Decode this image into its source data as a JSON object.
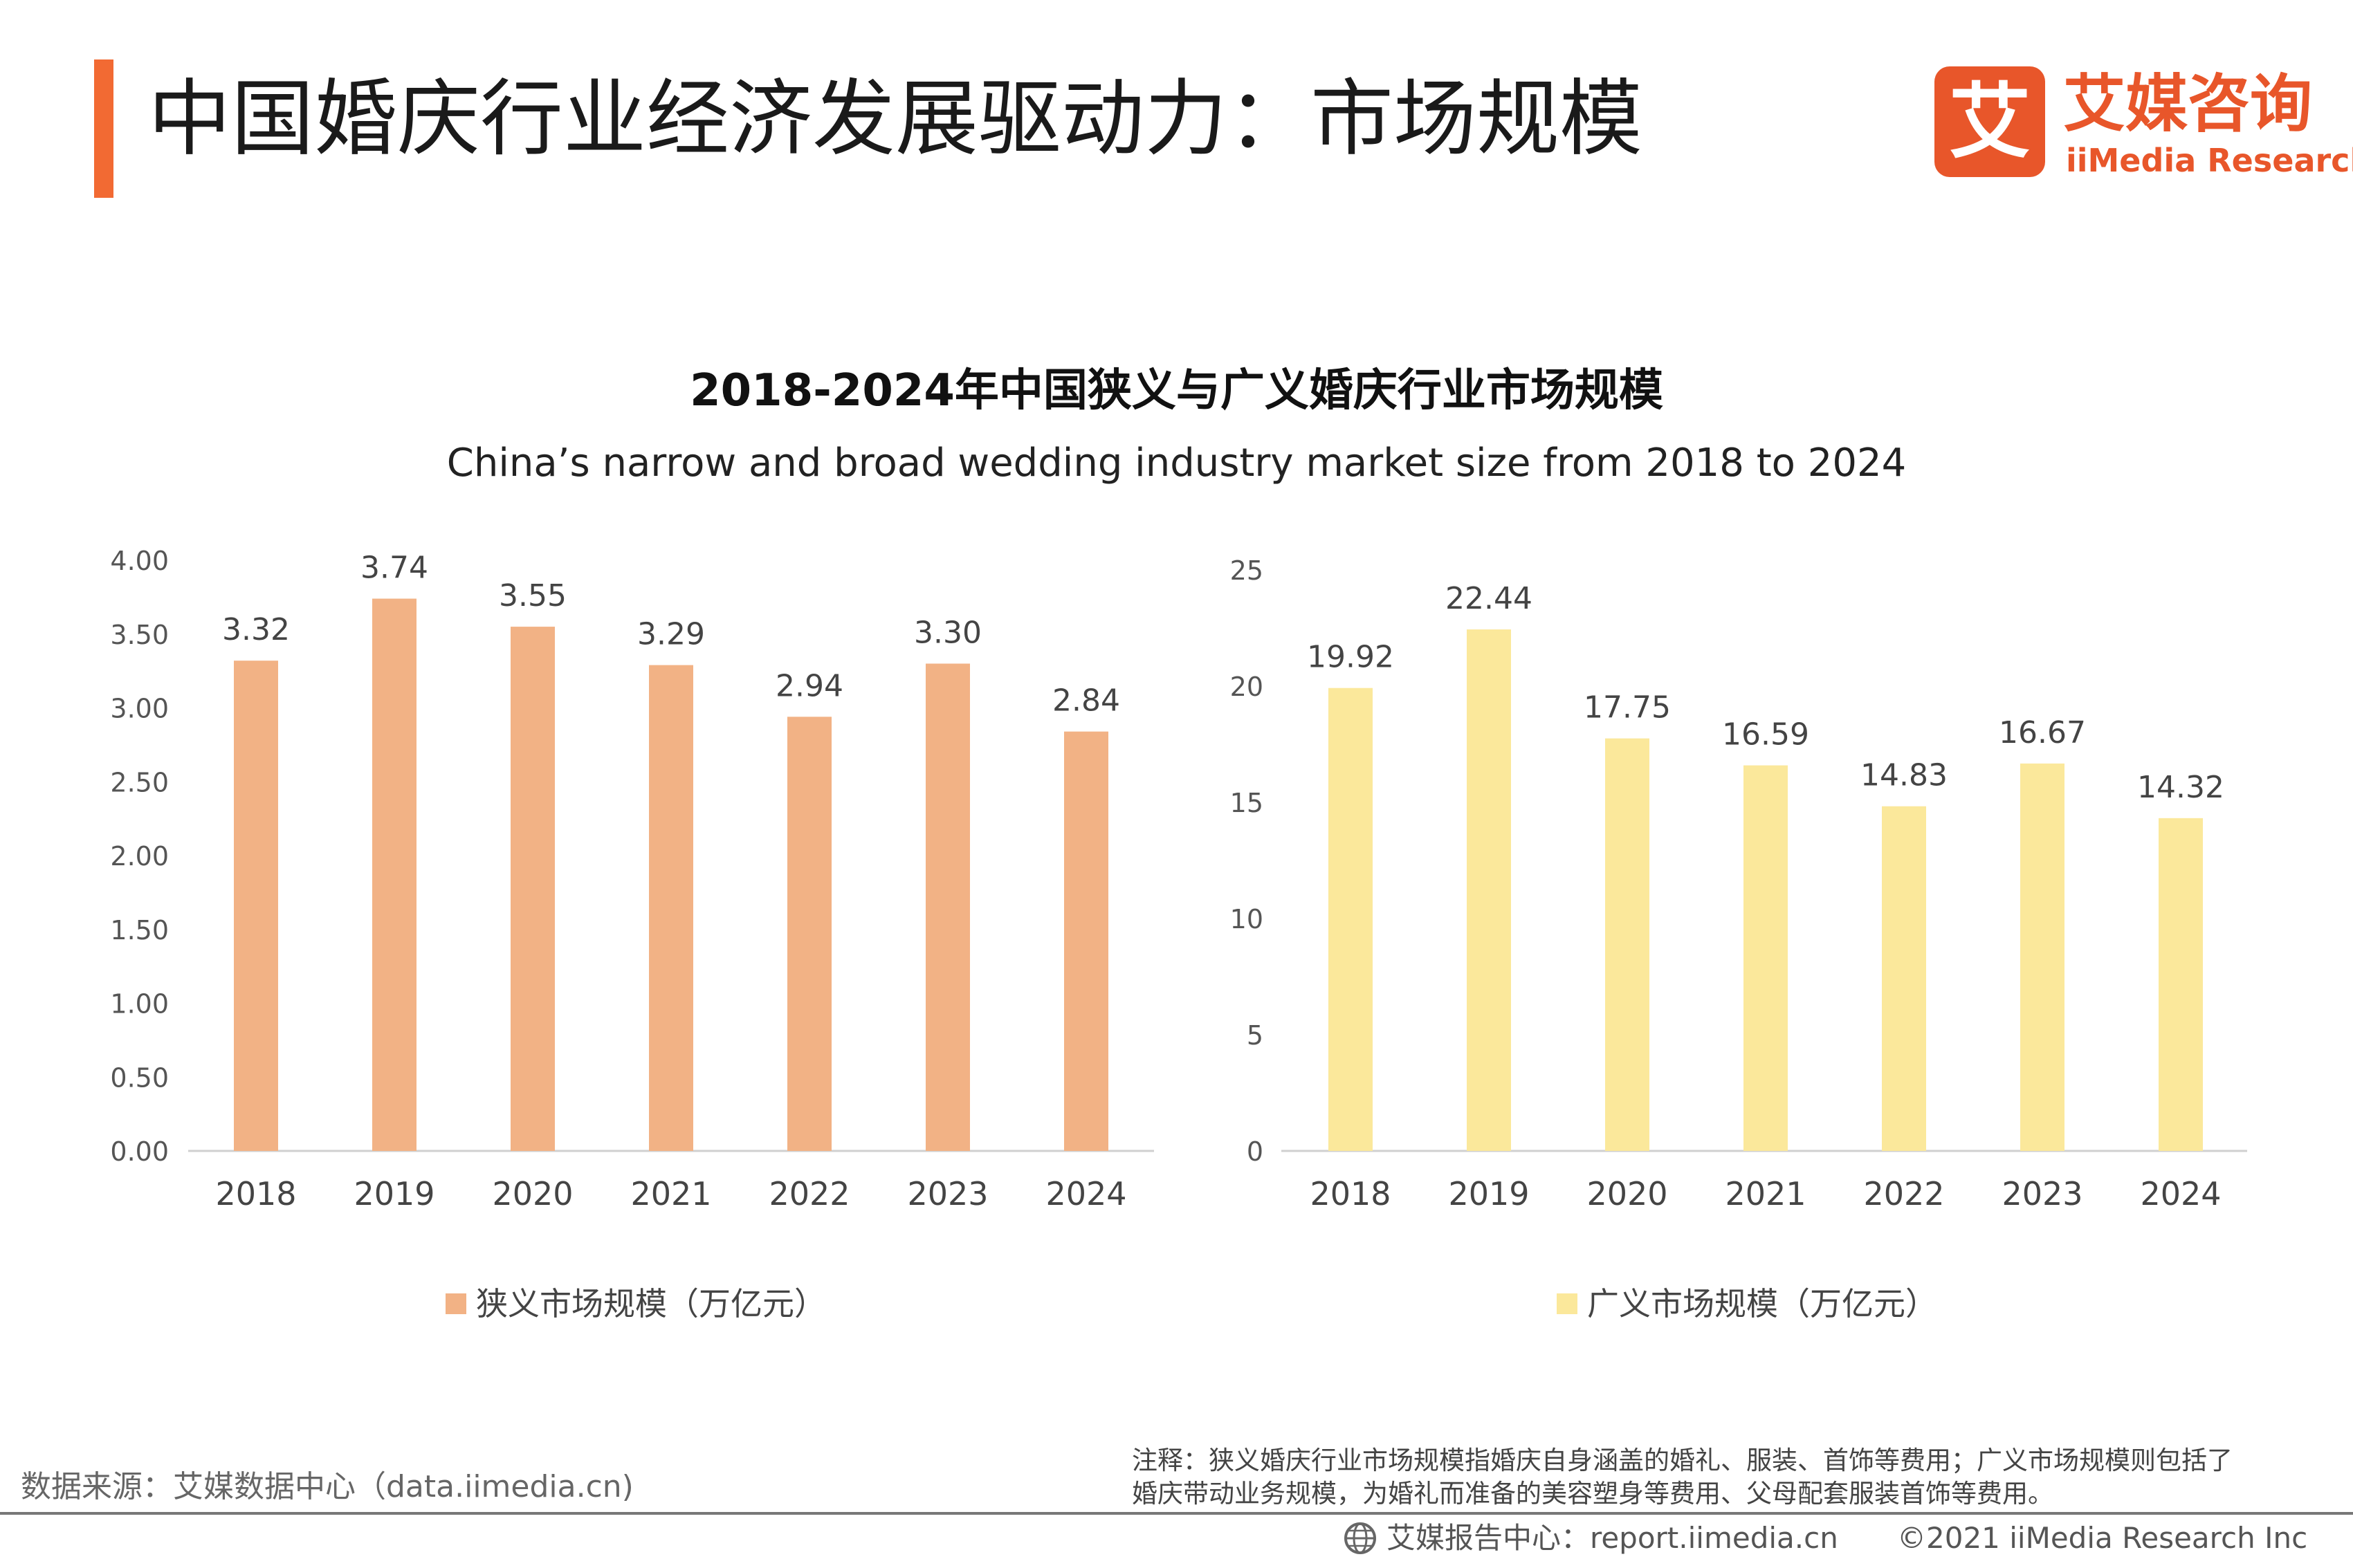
{
  "header": {
    "title": "中国婚庆行业经济发展驱动力：市场规模",
    "accent_color": "#f26a33"
  },
  "logo": {
    "glyph": "艾",
    "cn": "艾媒咨询",
    "en": "iiMedia Research",
    "color": "#e8562a"
  },
  "chart_title": "2018-2024年中国狭义与广义婚庆行业市场规模",
  "chart_subtitle": "China’s narrow and broad wedding industry market size from 2018 to 2024",
  "chart_data": [
    {
      "type": "bar",
      "categories": [
        "2018",
        "2019",
        "2020",
        "2021",
        "2022",
        "2023",
        "2024"
      ],
      "series": [
        {
          "name": "狭义市场规模（万亿元）",
          "values": [
            3.32,
            3.74,
            3.55,
            3.29,
            2.94,
            3.3,
            2.84
          ],
          "color": "#f2b285"
        }
      ],
      "value_labels": [
        "3.32",
        "3.74",
        "3.55",
        "3.29",
        "2.94",
        "3.30",
        "2.84"
      ],
      "yticks": [
        "0.00",
        "0.50",
        "1.00",
        "1.50",
        "2.00",
        "2.50",
        "3.00",
        "3.50",
        "4.00"
      ],
      "ylim": [
        0,
        4
      ],
      "grid": false,
      "legend_position": "bottom"
    },
    {
      "type": "bar",
      "categories": [
        "2018",
        "2019",
        "2020",
        "2021",
        "2022",
        "2023",
        "2024"
      ],
      "series": [
        {
          "name": "广义市场规模（万亿元）",
          "values": [
            19.92,
            22.44,
            17.75,
            16.59,
            14.83,
            16.67,
            14.32
          ],
          "color": "#fbe89b"
        }
      ],
      "value_labels": [
        "19.92",
        "22.44",
        "17.75",
        "16.59",
        "14.83",
        "16.67",
        "14.32"
      ],
      "yticks": [
        "0",
        "5",
        "10",
        "15",
        "20",
        "25"
      ],
      "ylim": [
        0,
        25
      ],
      "grid": false,
      "legend_position": "bottom"
    }
  ],
  "footer": {
    "source": "数据来源：艾媒数据中心（data.iimedia.cn)",
    "note_line1": "注释：狭义婚庆行业市场规模指婚庆自身涵盖的婚礼、服装、首饰等费用；广义市场规模则包括了",
    "note_line2": "婚庆带动业务规模，为婚礼而准备的美容塑身等费用、父母配套服装首饰等费用。",
    "report_center": "艾媒报告中心：report.iimedia.cn",
    "copyright": "©2021  iiMedia Research  Inc",
    "globe_icon": "globe-icon"
  }
}
